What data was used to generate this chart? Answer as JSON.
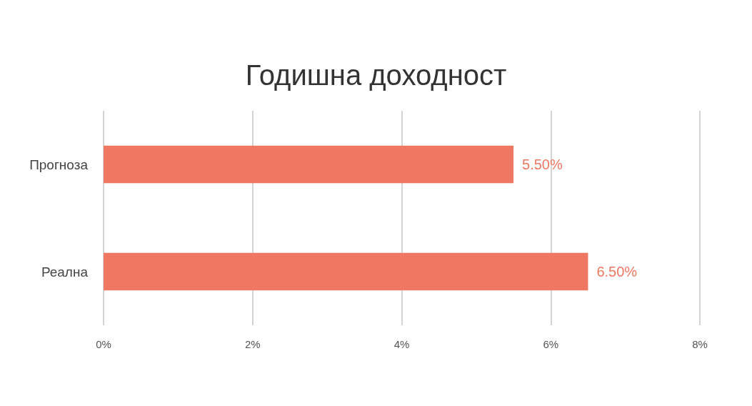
{
  "chart_data": {
    "type": "bar",
    "title": "Годишна доходност",
    "orientation": "horizontal",
    "categories": [
      "Прогноза",
      "Реална"
    ],
    "values": [
      5.5,
      6.5
    ],
    "value_labels": [
      "5.50%",
      "6.50%"
    ],
    "color": "#ef7862",
    "xlim": [
      0,
      8
    ],
    "xticks": [
      {
        "value": 0,
        "label": "0%"
      },
      {
        "value": 2,
        "label": "2%"
      },
      {
        "value": 4,
        "label": "4%"
      },
      {
        "value": 6,
        "label": "6%"
      },
      {
        "value": 8,
        "label": "8%"
      }
    ],
    "grid": "x"
  }
}
